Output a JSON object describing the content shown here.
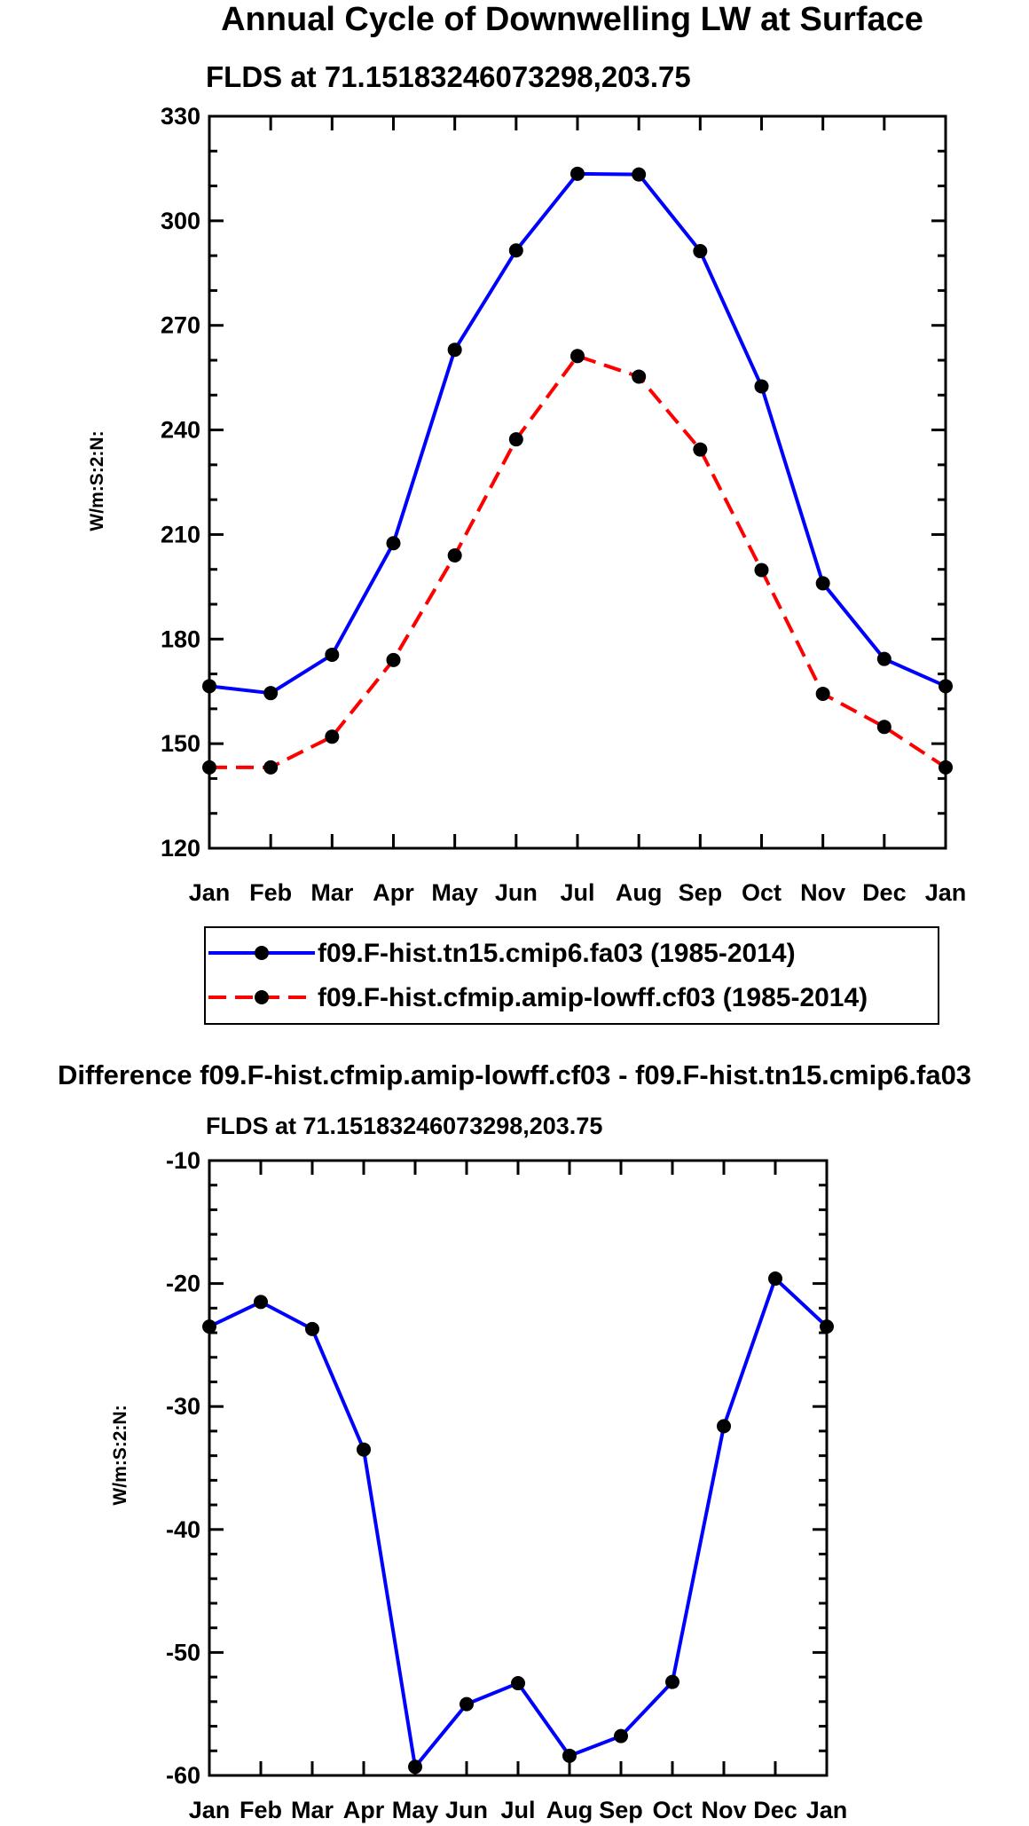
{
  "chart_data": [
    {
      "type": "line",
      "title": "Annual Cycle of Downwelling LW at Surface",
      "subtitle": "FLDS at 71.15183246073298,203.75",
      "ylabel": "W/m:S:2:N:",
      "xlabel": "",
      "categories": [
        "Jan",
        "Feb",
        "Mar",
        "Apr",
        "May",
        "Jun",
        "Jul",
        "Aug",
        "Sep",
        "Oct",
        "Nov",
        "Dec",
        "Jan"
      ],
      "ylim": [
        120,
        330
      ],
      "yticks": [
        120,
        150,
        180,
        210,
        240,
        270,
        300,
        330
      ],
      "legend_position": "bottom",
      "series": [
        {
          "name": "f09.F-hist.tn15.cmip6.fa03 (1985-2014)",
          "color": "#0000ff",
          "dashed": false,
          "values": [
            166.5,
            164.5,
            175.5,
            207.5,
            263,
            291.5,
            313.5,
            313.3,
            291.3,
            252.5,
            196,
            174.3,
            166.5
          ]
        },
        {
          "name": "f09.F-hist.cfmip.amip-lowff.cf03 (1985-2014)",
          "color": "#ff0000",
          "dashed": true,
          "values": [
            143.2,
            143.2,
            152,
            174,
            204,
            237.3,
            261.2,
            255.3,
            234.4,
            199.8,
            164.3,
            154.8,
            143.2
          ]
        }
      ]
    },
    {
      "type": "line",
      "title": "Difference f09.F-hist.cfmip.amip-lowff.cf03 - f09.F-hist.tn15.cmip6.fa03",
      "subtitle": "FLDS at 71.15183246073298,203.75",
      "ylabel": "W/m:S:2:N:",
      "xlabel": "",
      "categories": [
        "Jan",
        "Feb",
        "Mar",
        "Apr",
        "May",
        "Jun",
        "Jul",
        "Aug",
        "Sep",
        "Oct",
        "Nov",
        "Dec",
        "Jan"
      ],
      "ylim": [
        -60,
        -10
      ],
      "yticks": [
        -60,
        -50,
        -40,
        -30,
        -20,
        -10
      ],
      "series": [
        {
          "name": "difference",
          "color": "#0000ff",
          "dashed": false,
          "values": [
            -23.5,
            -21.5,
            -23.7,
            -33.5,
            -59.3,
            -54.2,
            -52.5,
            -58.4,
            -56.8,
            -52.4,
            -31.6,
            -19.6,
            -23.5
          ]
        }
      ]
    }
  ]
}
